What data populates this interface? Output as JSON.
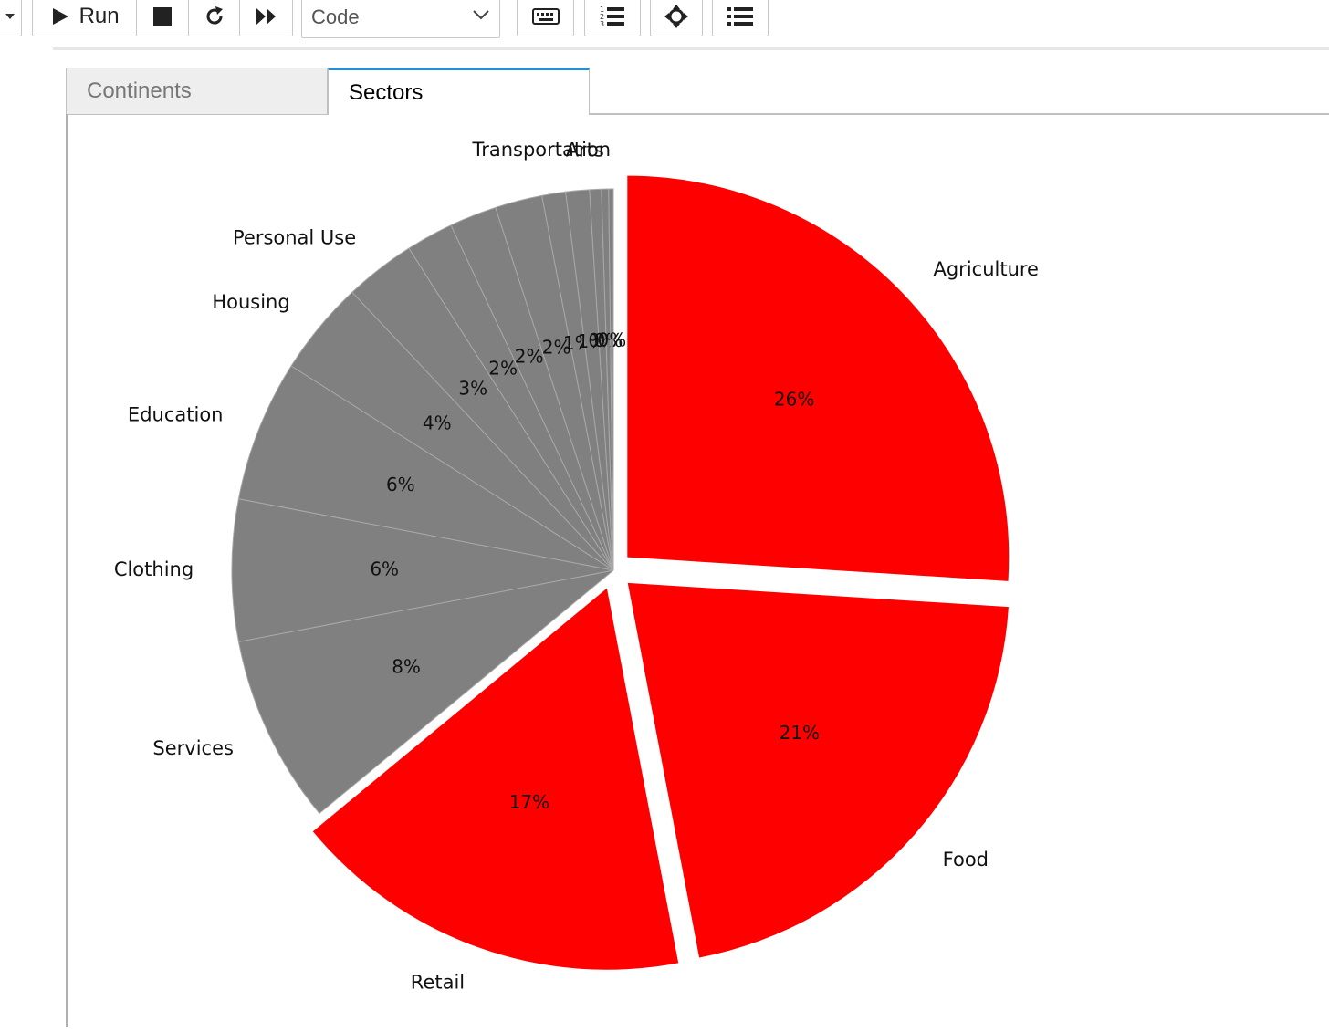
{
  "toolbar": {
    "run_label": "Run",
    "cell_type": "Code"
  },
  "tabs": [
    {
      "label": "Continents",
      "active": false
    },
    {
      "label": "Sectors",
      "active": true
    }
  ],
  "colors": {
    "highlight": "#ff0000",
    "other": "#808080",
    "tab_accent": "#2a8ad4"
  },
  "chart_data": {
    "type": "pie",
    "categories": [
      "Agriculture",
      "Food",
      "Retail",
      "Services",
      "Clothing",
      "Education",
      "Housing",
      "Personal Use",
      "",
      "",
      "",
      "",
      "",
      "",
      "Arts",
      "Transportation"
    ],
    "values": [
      26,
      21,
      17,
      8,
      6,
      6,
      4,
      3,
      2,
      2,
      2,
      1,
      1,
      0.5,
      0.3,
      0.2
    ],
    "data_labels": [
      "26%",
      "21%",
      "17%",
      "8%",
      "6%",
      "6%",
      "4%",
      "3%",
      "2%",
      "2%",
      "2%",
      "1%",
      "1%",
      "0%",
      "0%",
      "0%"
    ],
    "exploded": [
      true,
      true,
      true,
      false,
      false,
      false,
      false,
      false,
      false,
      false,
      false,
      false,
      false,
      false,
      false,
      false
    ],
    "highlight_color": "#ff0000",
    "other_color": "#808080",
    "start_angle_deg": 90,
    "direction": "clockwise"
  }
}
